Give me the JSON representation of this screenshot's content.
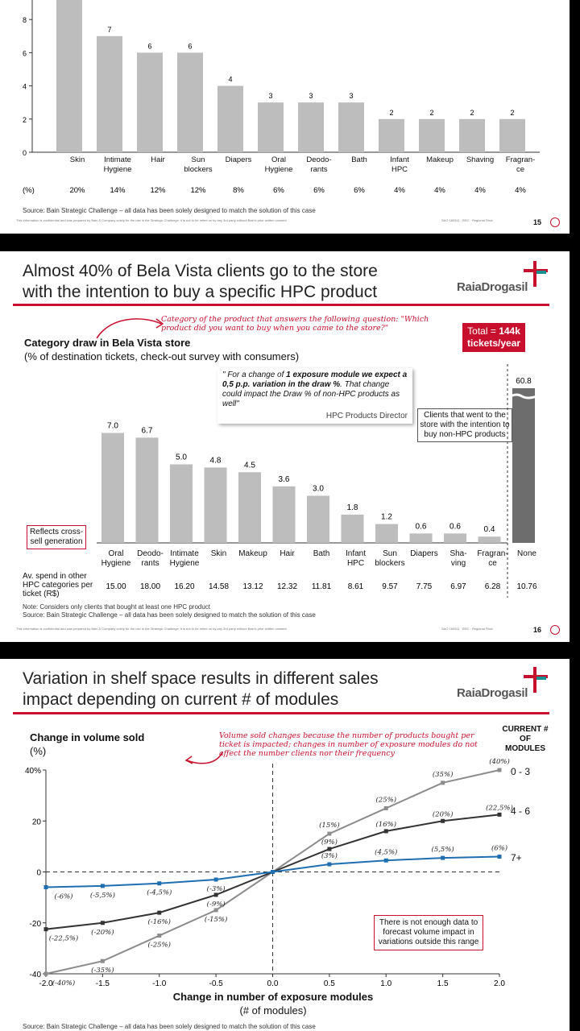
{
  "slide1": {
    "chart_data": {
      "type": "bar",
      "categories": [
        "Skin",
        "Intimate Hygiene",
        "Hair",
        "Sun blockers",
        "Diapers",
        "Oral Hygiene",
        "Deodo- rants",
        "Bath",
        "Infant HPC",
        "Makeup",
        "Shaving",
        "Fragran- ce"
      ],
      "values": [
        null,
        7,
        6,
        6,
        4,
        3,
        3,
        3,
        2,
        2,
        2,
        2
      ],
      "yticks": [
        "0",
        "2",
        "4",
        "6",
        "8"
      ],
      "ylim": [
        0,
        9
      ],
      "pct_row_label": "(%)",
      "pct_row": [
        "20%",
        "14%",
        "12%",
        "12%",
        "8%",
        "6%",
        "6%",
        "6%",
        "4%",
        "4%",
        "4%",
        "4%"
      ],
      "bar_color": "#bdbdbd"
    },
    "source": "Source: Bain Strategic Challenge – all data has been solely designed to match the solution of this case",
    "confidential": "This information is confidential and was prepared by Bain & Company solely for the use in the Strategic Challenge; it is not to be relied on by any 3rd party without Bain's prior written consent",
    "footer_right": "SAO   180511 · BSC · Regional Final",
    "page_number": "15"
  },
  "slide2": {
    "title_line1": "Almost 40% of Bela Vista clients go to the store",
    "title_line2": "with the intention to buy a specific HPC product",
    "logo": "RaiaDrogasil",
    "annotation": "Category of the product that answers the following question: \"Which product did you want to buy when you came to the store?\"",
    "total_label": "Total = ",
    "total_value": "144k",
    "total_unit": "tickets/year",
    "chart_title": "Category draw in Bela Vista store",
    "chart_subtitle": "(% of destination tickets, check-out survey with consumers)",
    "quote_plain1": "\" For a change of ",
    "quote_bold1": "1 exposure module",
    "quote_bold2": "we expect a 0,5 p.p. variation in the draw %",
    "quote_plain2": ". That change could impact the Draw % of non-HPC products as well\"",
    "quote_author": "HPC Products Director",
    "callout_nonhpc": "Clients that went to the store with the intention to buy non-HPC products",
    "callout_crosssell": "Reflects cross-sell generation",
    "chart_data": {
      "type": "bar",
      "categories": [
        "Oral Hygiene",
        "Deodo- rants",
        "Intimate Hygiene",
        "Skin",
        "Makeup",
        "Hair",
        "Bath",
        "Infant HPC",
        "Sun blockers",
        "Diapers",
        "Sha- ving",
        "Fragran- ce",
        "None"
      ],
      "values": [
        7.0,
        6.7,
        5.0,
        4.8,
        4.5,
        3.6,
        3.0,
        1.8,
        1.2,
        0.6,
        0.6,
        0.4,
        60.8
      ],
      "value_labels": [
        "7.0",
        "6.7",
        "5.0",
        "4.8",
        "4.5",
        "3.6",
        "3.0",
        "1.8",
        "1.2",
        "0.6",
        "0.6",
        "0.4",
        "60.8"
      ],
      "bar_color": "#bdbdbd",
      "none_color": "#6d6d6d",
      "spend_label": "Av. spend in other HPC categories per ticket (R$)",
      "spend": [
        "15.00",
        "18.00",
        "16.20",
        "14.58",
        "13.12",
        "12.32",
        "11.81",
        "8.61",
        "9.57",
        "7.75",
        "6.97",
        "6.28",
        "10.76"
      ]
    },
    "note": "Note: Considers only clients that bought at least one HPC product",
    "source": "Source: Bain Strategic Challenge – all data has been solely designed to match the solution of this case",
    "confidential": "This information is confidential and was prepared by Bain & Company solely for the use in the Strategic Challenge; it is not to be relied on by any 3rd party without Bain's prior written consent",
    "footer_right": "SAO   180511 · BSC · Regional Final",
    "page_number": "16"
  },
  "slide3": {
    "title_line1": "Variation in shelf space results in different sales",
    "title_line2": "impact depending on current # of modules",
    "logo": "RaiaDrogasil",
    "ylabel_line1": "Change in volume sold",
    "ylabel_line2": "(%)",
    "annotation": "Volume sold changes because the number of products bought per ticket is impacted; changes in number of exposure modules do not affect the number clients nor their frequency",
    "legend_title": "CURRENT # OF MODULES",
    "legend_labels": [
      "0 - 3",
      "4 - 6",
      "7+"
    ],
    "note_box": "There is not enough data to forecast volume impact in variations outside this range",
    "xlabel": "Change in number of exposure modules",
    "xlabel_sub": "(# of modules)",
    "source": "Source: Bain Strategic Challenge – all data has been solely designed to match the solution of this case",
    "chart_data": {
      "type": "line",
      "x": [
        -2.0,
        -1.5,
        -1.0,
        -0.5,
        0.0,
        0.5,
        1.0,
        1.5,
        2.0
      ],
      "xticks": [
        "-2.0",
        "-1.5",
        "-1.0",
        "-0.5",
        "0.0",
        "0.5",
        "1.0",
        "1.5",
        "2.0"
      ],
      "yticks": [
        "-40",
        "-20",
        "0",
        "20",
        "40%"
      ],
      "xlim": [
        -2,
        2
      ],
      "ylim": [
        -40,
        40
      ],
      "series": [
        {
          "key": "low",
          "color": "#8c8c8c",
          "values": [
            -40,
            -35,
            -25,
            -15,
            0,
            15,
            25,
            35,
            40
          ],
          "labels": [
            "(-40%)",
            "(-35%)",
            "(-25%)",
            "(-15%)",
            "",
            "(15%)",
            "(25%)",
            "(35%)",
            "(40%)"
          ]
        },
        {
          "key": "mid",
          "color": "#333333",
          "values": [
            -22.5,
            -20,
            -16,
            -9,
            0,
            9,
            16,
            20,
            22.5
          ],
          "labels": [
            "(-22,5%)",
            "(-20%)",
            "(-16%)",
            "(-9%)",
            "",
            "(9%)",
            "(16%)",
            "(20%)",
            "(22,5%)"
          ]
        },
        {
          "key": "high",
          "color": "#1f6fb0",
          "values": [
            -6,
            -5.5,
            -4.5,
            -3,
            0,
            3,
            4.5,
            5.5,
            6
          ],
          "labels": [
            "(-6%)",
            "(-5,5%)",
            "(-4,5%)",
            "(-3%)",
            "",
            "(3%)",
            "(4,5%)",
            "(5,5%)",
            "(6%)"
          ]
        }
      ]
    }
  }
}
